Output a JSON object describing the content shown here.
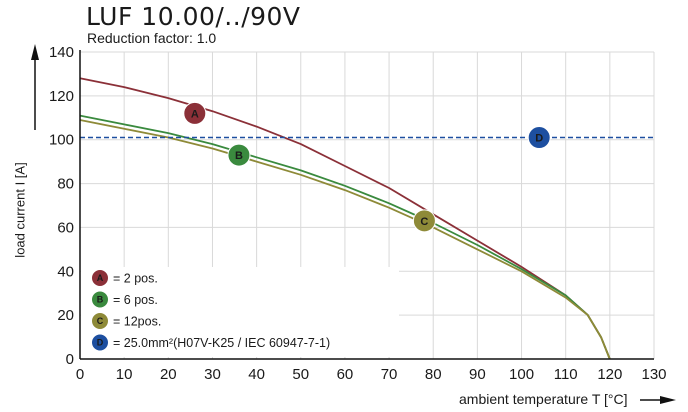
{
  "chart_data": {
    "type": "line",
    "title": "LUF 10.00/../90V",
    "subtitle": "Reduction factor: 1.0",
    "xlabel": "ambient temperature T [°C]",
    "ylabel": "load current I [A]",
    "xlim": [
      0,
      130
    ],
    "ylim": [
      0,
      140
    ],
    "xticks": [
      0,
      10,
      20,
      30,
      40,
      50,
      60,
      70,
      80,
      90,
      100,
      110,
      120,
      130
    ],
    "yticks": [
      0,
      20,
      40,
      60,
      80,
      100,
      120,
      140
    ],
    "grid": true,
    "legend_position": "bottom-left",
    "series": [
      {
        "marker": "A",
        "name": "= 2 pos.",
        "color": "#8b3038",
        "style": "solid",
        "x": [
          0,
          10,
          20,
          30,
          40,
          50,
          60,
          70,
          80,
          90,
          100,
          110,
          115,
          118,
          120
        ],
        "y": [
          128,
          124,
          119,
          113,
          106,
          98,
          88,
          78,
          66,
          54,
          42,
          29,
          20,
          10,
          0
        ]
      },
      {
        "marker": "B",
        "name": "= 6 pos.",
        "color": "#3a8a3e",
        "style": "solid",
        "x": [
          0,
          10,
          20,
          30,
          40,
          50,
          60,
          70,
          80,
          90,
          100,
          110,
          115,
          118,
          120
        ],
        "y": [
          111,
          107,
          103,
          98,
          92,
          86,
          79,
          71,
          62,
          52,
          41,
          29,
          20,
          10,
          0
        ]
      },
      {
        "marker": "C",
        "name": "= 12pos.",
        "color": "#8e8a38",
        "style": "solid",
        "x": [
          0,
          10,
          20,
          30,
          40,
          50,
          60,
          70,
          80,
          90,
          100,
          110,
          115,
          118,
          120
        ],
        "y": [
          109,
          105,
          101,
          96,
          90,
          84,
          77,
          69,
          60,
          50,
          40,
          28,
          20,
          10,
          0
        ]
      },
      {
        "marker": "D",
        "name": "= 25.0mm²(H07V-K25 / IEC 60947-7-1)",
        "color": "#1d4fa0",
        "style": "dashed",
        "x": [
          0,
          130
        ],
        "y": [
          101,
          101
        ]
      }
    ],
    "markers": [
      {
        "label": "A",
        "x": 26,
        "y": 112
      },
      {
        "label": "B",
        "x": 36,
        "y": 93
      },
      {
        "label": "C",
        "x": 78,
        "y": 63
      },
      {
        "label": "D",
        "x": 104,
        "y": 101
      }
    ]
  }
}
